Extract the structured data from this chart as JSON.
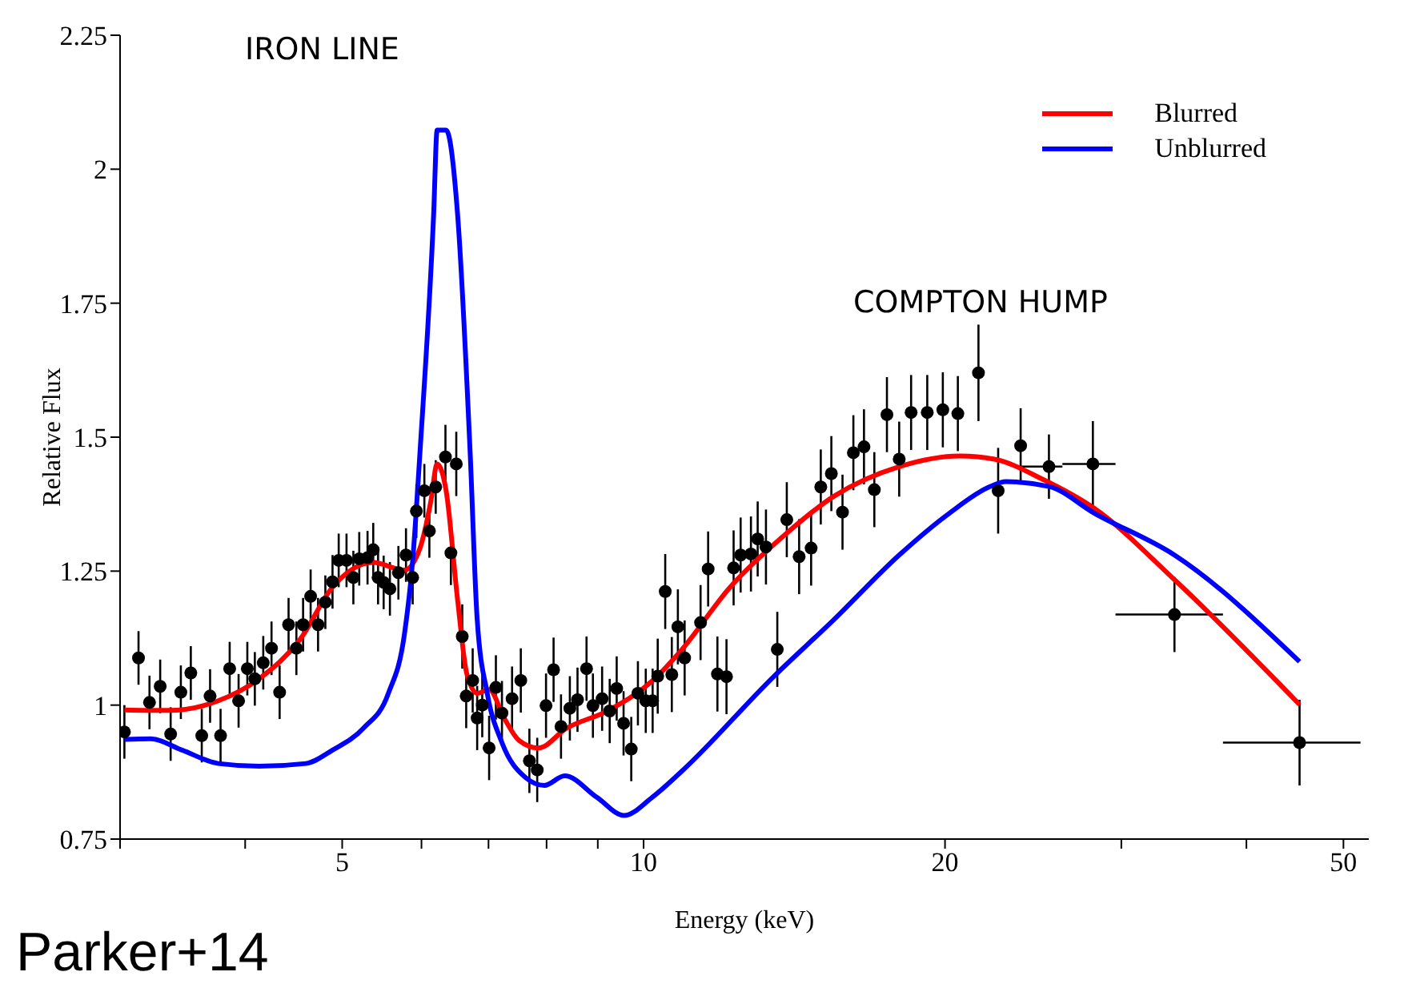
{
  "chart_data": {
    "type": "scatter",
    "xlabel": "Energy (keV)",
    "ylabel": "Relative Flux",
    "log": "x",
    "xlim": [
      3,
      53
    ],
    "xticks": [
      {
        "value": 3,
        "label": null
      },
      {
        "value": 4,
        "label": null
      },
      5,
      {
        "value": 6,
        "label": null
      },
      {
        "value": 7,
        "label": null
      },
      {
        "value": 8,
        "label": null
      },
      {
        "value": 9,
        "label": null
      },
      10,
      20,
      {
        "value": 30,
        "label": null
      },
      {
        "value": 40,
        "label": null
      },
      50
    ],
    "ylim": [
      0.75,
      2.25
    ],
    "yticks": [
      0.75,
      1,
      1.25,
      1.5,
      1.75,
      2,
      2.25
    ],
    "grid": false,
    "legend": "top right",
    "annotations": [
      "IRON LINE",
      "COMPTON HUMP",
      "Parker+14"
    ],
    "series": [
      {
        "color": "#000000",
        "marker": "circle",
        "x": [
          3.03,
          3.13,
          3.21,
          3.29,
          3.37,
          3.45,
          3.53,
          3.62,
          3.69,
          3.78,
          3.86,
          3.94,
          4.02,
          4.09,
          4.17,
          4.25,
          4.33,
          4.42,
          4.5,
          4.57,
          4.65,
          4.73,
          4.81,
          4.89,
          4.96,
          5.05,
          5.13,
          5.2,
          5.3,
          5.37,
          5.43,
          5.5,
          5.58,
          5.69,
          5.79,
          5.88,
          5.93,
          6.04,
          6.11,
          6.2,
          6.34,
          6.42,
          6.5,
          6.59,
          6.65,
          6.75,
          6.82,
          6.9,
          7.01,
          7.12,
          7.22,
          7.39,
          7.54,
          7.69,
          7.83,
          7.99,
          8.13,
          8.27,
          8.44,
          8.59,
          8.77,
          8.9,
          9.09,
          9.25,
          9.4,
          9.55,
          9.72,
          9.87,
          10.05,
          10.21,
          10.33,
          10.51,
          10.67,
          10.82,
          10.99,
          11.4,
          11.6,
          11.85,
          12.1,
          12.3,
          12.5,
          12.8,
          13.0,
          13.25,
          13.6,
          13.9,
          14.3,
          14.7,
          15.03,
          15.4,
          15.8,
          16.2,
          16.6,
          17.0,
          17.5,
          18.0,
          18.5,
          19.2,
          19.9,
          20.6,
          21.6,
          22.6,
          23.8,
          25.4,
          28.1,
          33.9,
          45.2
        ],
        "values": [
          0.95,
          1.088,
          1.005,
          1.035,
          0.946,
          1.024,
          1.06,
          0.943,
          1.017,
          0.943,
          1.068,
          1.008,
          1.068,
          1.049,
          1.079,
          1.106,
          1.024,
          1.15,
          1.106,
          1.15,
          1.203,
          1.15,
          1.192,
          1.23,
          1.27,
          1.27,
          1.238,
          1.273,
          1.275,
          1.29,
          1.238,
          1.229,
          1.217,
          1.247,
          1.28,
          1.238,
          1.362,
          1.4,
          1.325,
          1.407,
          1.463,
          1.284,
          1.45,
          1.128,
          1.017,
          1.046,
          0.976,
          1.0,
          0.92,
          1.033,
          0.985,
          1.012,
          1.046,
          0.896,
          0.879,
          0.999,
          1.066,
          0.96,
          0.994,
          1.01,
          1.068,
          0.999,
          1.012,
          0.989,
          1.031,
          0.966,
          0.918,
          1.022,
          1.008,
          1.008,
          1.054,
          1.212,
          1.057,
          1.146,
          1.088,
          1.154,
          1.254,
          1.058,
          1.053,
          1.256,
          1.28,
          1.282,
          1.31,
          1.295,
          1.104,
          1.346,
          1.277,
          1.293,
          1.407,
          1.432,
          1.36,
          1.471,
          1.482,
          1.402,
          1.542,
          1.459,
          1.546,
          1.546,
          1.551,
          1.544,
          1.62,
          1.4,
          1.484,
          1.445,
          1.45,
          1.169,
          0.93
        ],
        "errors": [
          0.05,
          0.05,
          0.05,
          0.05,
          0.05,
          0.05,
          0.05,
          0.05,
          0.05,
          0.05,
          0.05,
          0.05,
          0.05,
          0.05,
          0.05,
          0.05,
          0.05,
          0.05,
          0.05,
          0.05,
          0.05,
          0.05,
          0.05,
          0.05,
          0.05,
          0.05,
          0.05,
          0.05,
          0.05,
          0.05,
          0.05,
          0.05,
          0.05,
          0.05,
          0.05,
          0.05,
          0.05,
          0.05,
          0.05,
          0.05,
          0.06,
          0.06,
          0.06,
          0.06,
          0.06,
          0.06,
          0.06,
          0.06,
          0.06,
          0.06,
          0.06,
          0.06,
          0.06,
          0.06,
          0.06,
          0.06,
          0.06,
          0.06,
          0.06,
          0.06,
          0.06,
          0.06,
          0.06,
          0.06,
          0.06,
          0.06,
          0.06,
          0.06,
          0.06,
          0.06,
          0.07,
          0.07,
          0.07,
          0.07,
          0.07,
          0.07,
          0.07,
          0.07,
          0.07,
          0.07,
          0.07,
          0.07,
          0.07,
          0.07,
          0.07,
          0.07,
          0.07,
          0.07,
          0.07,
          0.07,
          0.07,
          0.07,
          0.07,
          0.07,
          0.07,
          0.07,
          0.07,
          0.07,
          0.07,
          0.07,
          0.09,
          0.08,
          0.07,
          0.06,
          0.08,
          0.07,
          0.08
        ],
        "xerrors": [
          null,
          null,
          null,
          null,
          null,
          null,
          null,
          null,
          null,
          null,
          null,
          null,
          null,
          null,
          null,
          null,
          null,
          null,
          null,
          null,
          null,
          null,
          null,
          null,
          null,
          null,
          null,
          null,
          null,
          null,
          null,
          null,
          null,
          null,
          null,
          null,
          null,
          null,
          null,
          null,
          null,
          null,
          null,
          null,
          null,
          null,
          null,
          null,
          null,
          null,
          null,
          null,
          null,
          null,
          null,
          null,
          null,
          null,
          null,
          null,
          null,
          null,
          null,
          null,
          null,
          null,
          null,
          null,
          null,
          null,
          null,
          null,
          null,
          null,
          null,
          null,
          null,
          null,
          null,
          null,
          null,
          null,
          null,
          null,
          null,
          null,
          null,
          null,
          null,
          null,
          null,
          null,
          null,
          null,
          null,
          null,
          null,
          null,
          null,
          null,
          null,
          null,
          null,
          [
            23.7,
            26.2
          ],
          [
            26.2,
            29.6
          ],
          [
            29.6,
            37.9
          ],
          [
            37.9,
            52
          ]
        ]
      },
      {
        "type": "line",
        "name": "Blurred",
        "color": "#ff0000",
        "marker": "none",
        "x": [
          3.03,
          3.35,
          3.76,
          4.13,
          4.54,
          4.89,
          5.37,
          5.77,
          5.98,
          6.13,
          6.22,
          6.35,
          6.52,
          6.66,
          6.82,
          7.01,
          7.26,
          7.51,
          7.85,
          8.38,
          9.2,
          10.2,
          10.88,
          12.2,
          13.8,
          15.5,
          18.0,
          20.7,
          22.4,
          25.0,
          28.2,
          33.9,
          45.2
        ],
        "values": [
          0.991,
          0.99,
          1.008,
          1.049,
          1.123,
          1.22,
          1.266,
          1.252,
          1.293,
          1.38,
          1.45,
          1.4,
          1.196,
          1.058,
          1.022,
          1.029,
          0.975,
          0.934,
          0.92,
          0.957,
          0.989,
          1.045,
          1.1,
          1.22,
          1.316,
          1.39,
          1.445,
          1.465,
          1.459,
          1.422,
          1.367,
          1.234,
          1.001
        ]
      },
      {
        "type": "line",
        "name": "Unblurred",
        "color": "#0000ff",
        "marker": "none",
        "x": [
          3.03,
          3.22,
          3.46,
          3.76,
          4.13,
          4.6,
          4.89,
          5.25,
          5.56,
          5.77,
          5.88,
          5.98,
          6.17,
          6.22,
          6.35,
          6.52,
          6.71,
          6.82,
          6.98,
          7.22,
          7.62,
          7.96,
          8.34,
          8.98,
          9.56,
          10.2,
          10.88,
          13.5,
          15.5,
          18.0,
          20.2,
          22.2,
          23.0,
          25.4,
          28.2,
          33.9,
          45.2
        ],
        "values": [
          0.936,
          0.937,
          0.916,
          0.891,
          0.886,
          0.891,
          0.916,
          0.957,
          1.022,
          1.133,
          1.27,
          1.473,
          1.915,
          2.073,
          2.073,
          1.915,
          1.473,
          1.16,
          1.022,
          0.93,
          0.865,
          0.85,
          0.868,
          0.828,
          0.794,
          0.828,
          0.874,
          1.054,
          1.16,
          1.28,
          1.358,
          1.408,
          1.417,
          1.408,
          1.358,
          1.28,
          1.081
        ]
      }
    ]
  }
}
